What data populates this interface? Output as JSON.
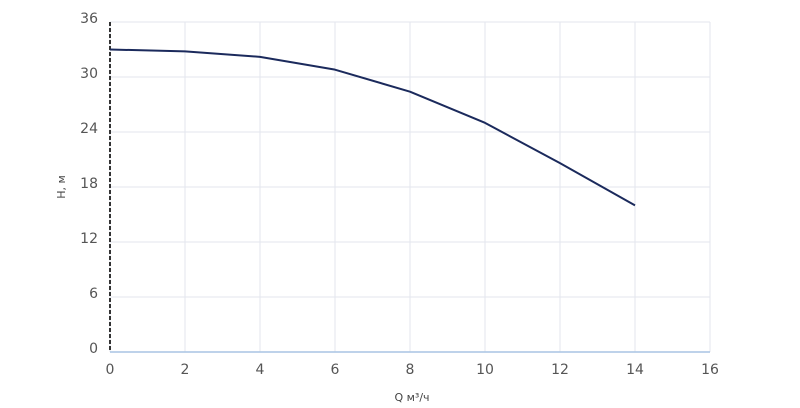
{
  "chart_data": {
    "type": "line",
    "xlabel": "Q м³/ч",
    "ylabel": "H, м",
    "x": [
      0,
      2,
      4,
      6,
      8,
      10,
      12,
      14
    ],
    "series": [
      {
        "name": "H",
        "color": "#1b2a5c",
        "values": [
          33,
          32.8,
          32.2,
          30.8,
          28.4,
          25,
          20.6,
          16
        ]
      }
    ],
    "xlim": [
      0,
      16
    ],
    "xticks": [
      0,
      2,
      4,
      6,
      8,
      10,
      12,
      14,
      16
    ],
    "ylim": [
      0,
      36
    ],
    "yticks": [
      0,
      6,
      12,
      18,
      24,
      30,
      36
    ],
    "grid": true
  }
}
